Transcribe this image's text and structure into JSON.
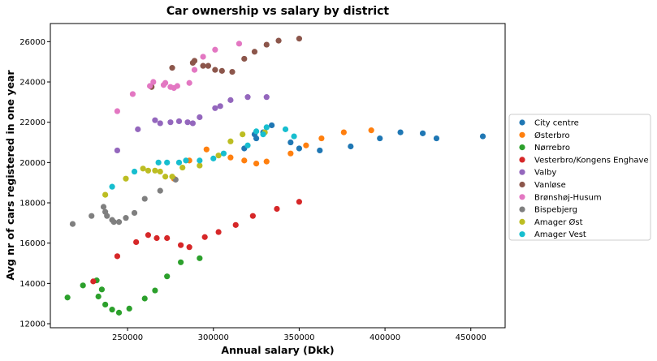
{
  "chart_data": {
    "type": "scatter",
    "title": "Car ownership vs salary by district",
    "xlabel": "Annual salary (Dkk)",
    "ylabel": "Avg nr of cars registered in one year",
    "xlim": [
      205000,
      470000
    ],
    "ylim": [
      11800,
      26900
    ],
    "xticks": [
      250000,
      300000,
      350000,
      400000,
      450000
    ],
    "xtick_labels": [
      "250000",
      "300000",
      "350000",
      "400000",
      "450000"
    ],
    "yticks": [
      12000,
      14000,
      16000,
      18000,
      20000,
      22000,
      24000,
      26000
    ],
    "ytick_labels": [
      "12000",
      "14000",
      "16000",
      "18000",
      "20000",
      "22000",
      "24000",
      "26000"
    ],
    "grid": false,
    "legend_position": "outside right",
    "series": [
      {
        "name": "City centre",
        "color": "#1f77b4",
        "points": [
          [
            318000,
            20700
          ],
          [
            324000,
            21400
          ],
          [
            325000,
            21200
          ],
          [
            329000,
            21500
          ],
          [
            334000,
            21850
          ],
          [
            345000,
            21000
          ],
          [
            350000,
            20700
          ],
          [
            362000,
            20600
          ],
          [
            380000,
            20800
          ],
          [
            397000,
            21200
          ],
          [
            409000,
            21500
          ],
          [
            422000,
            21450
          ],
          [
            430000,
            21200
          ],
          [
            457000,
            21300
          ]
        ]
      },
      {
        "name": "Østerbro",
        "color": "#ff7f0e",
        "points": [
          [
            277000,
            19200
          ],
          [
            286000,
            20100
          ],
          [
            296000,
            20650
          ],
          [
            310000,
            20250
          ],
          [
            318000,
            20100
          ],
          [
            325000,
            19950
          ],
          [
            331000,
            20050
          ],
          [
            345000,
            20450
          ],
          [
            354000,
            20850
          ],
          [
            363000,
            21200
          ],
          [
            376000,
            21500
          ],
          [
            392000,
            21600
          ]
        ]
      },
      {
        "name": "Nørrebro",
        "color": "#2ca02c",
        "points": [
          [
            215000,
            13300
          ],
          [
            224000,
            13900
          ],
          [
            232000,
            14150
          ],
          [
            233000,
            13350
          ],
          [
            235000,
            13700
          ],
          [
            237000,
            12950
          ],
          [
            241000,
            12700
          ],
          [
            245000,
            12550
          ],
          [
            251000,
            12750
          ],
          [
            260000,
            13250
          ],
          [
            266000,
            13650
          ],
          [
            273000,
            14350
          ],
          [
            281000,
            15050
          ],
          [
            292000,
            15250
          ]
        ]
      },
      {
        "name": "Vesterbro/Kongens Enghave",
        "color": "#d62728",
        "points": [
          [
            230000,
            14100
          ],
          [
            244000,
            15350
          ],
          [
            255000,
            16050
          ],
          [
            262000,
            16400
          ],
          [
            267000,
            16250
          ],
          [
            273000,
            16250
          ],
          [
            281000,
            15900
          ],
          [
            286000,
            15800
          ],
          [
            295000,
            16300
          ],
          [
            303000,
            16550
          ],
          [
            313000,
            16900
          ],
          [
            323000,
            17350
          ],
          [
            337000,
            17700
          ],
          [
            350000,
            18050
          ]
        ]
      },
      {
        "name": "Valby",
        "color": "#9467bd",
        "points": [
          [
            244000,
            20600
          ],
          [
            256000,
            21650
          ],
          [
            266000,
            22100
          ],
          [
            269000,
            21950
          ],
          [
            275000,
            22000
          ],
          [
            280000,
            22050
          ],
          [
            285000,
            22000
          ],
          [
            288000,
            21950
          ],
          [
            292000,
            22250
          ],
          [
            301000,
            22700
          ],
          [
            304000,
            22800
          ],
          [
            310000,
            23100
          ],
          [
            320000,
            23250
          ],
          [
            331000,
            23250
          ]
        ]
      },
      {
        "name": "Vanløse",
        "color": "#8c564b",
        "points": [
          [
            264000,
            23750
          ],
          [
            276000,
            24700
          ],
          [
            288000,
            24950
          ],
          [
            289000,
            25050
          ],
          [
            294000,
            24800
          ],
          [
            297000,
            24800
          ],
          [
            301000,
            24600
          ],
          [
            305000,
            24550
          ],
          [
            311000,
            24500
          ],
          [
            318000,
            25150
          ],
          [
            324000,
            25500
          ],
          [
            331000,
            25850
          ],
          [
            338000,
            26050
          ],
          [
            350000,
            26150
          ]
        ]
      },
      {
        "name": "Brønshøj-Husum",
        "color": "#e377c2",
        "points": [
          [
            244000,
            22550
          ],
          [
            253000,
            23400
          ],
          [
            263000,
            23800
          ],
          [
            265000,
            24000
          ],
          [
            271000,
            23850
          ],
          [
            272000,
            23950
          ],
          [
            275000,
            23750
          ],
          [
            277000,
            23700
          ],
          [
            279000,
            23800
          ],
          [
            286000,
            23950
          ],
          [
            289000,
            24600
          ],
          [
            294000,
            25250
          ],
          [
            301000,
            25600
          ],
          [
            315000,
            25900
          ]
        ]
      },
      {
        "name": "Bispebjerg",
        "color": "#7f7f7f",
        "points": [
          [
            218000,
            16950
          ],
          [
            229000,
            17350
          ],
          [
            236000,
            17800
          ],
          [
            237000,
            17550
          ],
          [
            238000,
            17350
          ],
          [
            241000,
            17150
          ],
          [
            242000,
            17050
          ],
          [
            245000,
            17050
          ],
          [
            249000,
            17250
          ],
          [
            254000,
            17500
          ],
          [
            260000,
            18200
          ],
          [
            269000,
            18600
          ],
          [
            278000,
            19150
          ]
        ]
      },
      {
        "name": "Amager Øst",
        "color": "#bcbd22",
        "points": [
          [
            237000,
            18400
          ],
          [
            249000,
            19200
          ],
          [
            259000,
            19700
          ],
          [
            262000,
            19600
          ],
          [
            266000,
            19600
          ],
          [
            269000,
            19550
          ],
          [
            272000,
            19300
          ],
          [
            276000,
            19300
          ],
          [
            282000,
            19750
          ],
          [
            292000,
            19850
          ],
          [
            303000,
            20350
          ],
          [
            310000,
            21050
          ],
          [
            317000,
            21400
          ],
          [
            330000,
            21500
          ]
        ]
      },
      {
        "name": "Amager Vest",
        "color": "#17becf",
        "points": [
          [
            241000,
            18800
          ],
          [
            254000,
            19550
          ],
          [
            268000,
            20000
          ],
          [
            273000,
            20000
          ],
          [
            280000,
            20000
          ],
          [
            284000,
            20100
          ],
          [
            292000,
            20100
          ],
          [
            300000,
            20200
          ],
          [
            306000,
            20450
          ],
          [
            320000,
            20850
          ],
          [
            325000,
            21550
          ],
          [
            329000,
            21400
          ],
          [
            331000,
            21750
          ],
          [
            342000,
            21650
          ],
          [
            347000,
            21300
          ]
        ]
      }
    ]
  }
}
